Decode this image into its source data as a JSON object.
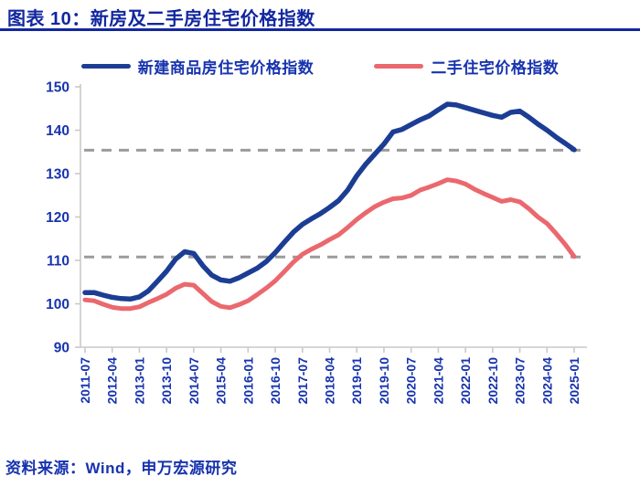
{
  "title": "图表 10：新房及二手房住宅价格指数",
  "legend": {
    "items": [
      {
        "label": "新建商品房住宅价格指数"
      },
      {
        "label": "二手住宅价格指数"
      }
    ]
  },
  "source_note": "资料来源：Wind，申万宏源研究",
  "colors": {
    "title_blue": "#1227a0",
    "text_blue": "#1733ae",
    "new_home_line": "#1c3d94",
    "secondhand_line": "#ea686e",
    "reference_dash": "#9b9b9b",
    "axis_gray": "#c9c9c9"
  },
  "chart_data": {
    "type": "line",
    "title": "新房及二手房住宅价格指数",
    "xlabel": "",
    "ylabel": "",
    "ylim": [
      90,
      150
    ],
    "y_ticks": [
      90,
      100,
      110,
      120,
      130,
      140,
      150
    ],
    "grid": false,
    "legend_position": "top",
    "x_interval_months": 3,
    "x": [
      "2011-07",
      "2011-10",
      "2012-01",
      "2012-04",
      "2012-07",
      "2012-10",
      "2013-01",
      "2013-04",
      "2013-07",
      "2013-10",
      "2014-01",
      "2014-04",
      "2014-07",
      "2014-10",
      "2015-01",
      "2015-04",
      "2015-07",
      "2015-10",
      "2016-01",
      "2016-04",
      "2016-07",
      "2016-10",
      "2017-01",
      "2017-04",
      "2017-07",
      "2017-10",
      "2018-01",
      "2018-04",
      "2018-07",
      "2018-10",
      "2019-01",
      "2019-04",
      "2019-07",
      "2019-10",
      "2020-01",
      "2020-04",
      "2020-07",
      "2020-10",
      "2021-01",
      "2021-04",
      "2021-07",
      "2021-10",
      "2022-01",
      "2022-04",
      "2022-07",
      "2022-10",
      "2023-01",
      "2023-04",
      "2023-07",
      "2023-10",
      "2024-01",
      "2024-04",
      "2024-07",
      "2024-10",
      "2025-01"
    ],
    "x_tick_labels": [
      "2011-07",
      "2012-04",
      "2013-01",
      "2013-10",
      "2014-07",
      "2015-04",
      "2016-01",
      "2016-10",
      "2017-07",
      "2018-04",
      "2019-01",
      "2019-10",
      "2020-07",
      "2021-04",
      "2022-01",
      "2022-10",
      "2023-07",
      "2024-04",
      "2025-01"
    ],
    "series": [
      {
        "name": "新建商品房住宅价格指数",
        "color": "#1c3d94",
        "values": [
          102.6,
          102.6,
          102.0,
          101.5,
          101.2,
          101.1,
          101.6,
          103.0,
          105.2,
          107.5,
          110.3,
          112.0,
          111.6,
          108.8,
          106.6,
          105.5,
          105.2,
          106.0,
          107.1,
          108.2,
          109.7,
          111.8,
          114.2,
          116.5,
          118.3,
          119.6,
          120.8,
          122.2,
          123.8,
          126.2,
          129.5,
          132.2,
          134.5,
          136.8,
          139.6,
          140.2,
          141.3,
          142.4,
          143.3,
          144.7,
          146.0,
          145.8,
          145.2,
          144.6,
          144.0,
          143.4,
          143.0,
          144.1,
          144.4,
          143.0,
          141.4,
          140.0,
          138.4,
          137.0,
          135.5
        ]
      },
      {
        "name": "二手住宅价格指数",
        "color": "#ea686e",
        "values": [
          100.9,
          100.7,
          99.9,
          99.2,
          98.9,
          98.9,
          99.3,
          100.3,
          101.2,
          102.2,
          103.6,
          104.5,
          104.3,
          102.4,
          100.5,
          99.4,
          99.1,
          99.8,
          100.7,
          102.1,
          103.6,
          105.3,
          107.4,
          109.6,
          111.4,
          112.6,
          113.6,
          114.8,
          115.9,
          117.6,
          119.4,
          121.0,
          122.4,
          123.4,
          124.2,
          124.4,
          125.0,
          126.2,
          126.9,
          127.7,
          128.6,
          128.3,
          127.6,
          126.4,
          125.4,
          124.5,
          123.6,
          124.0,
          123.5,
          121.9,
          120.0,
          118.5,
          116.2,
          113.7,
          110.9
        ]
      }
    ],
    "reference_lines": [
      {
        "value": 135.4,
        "style": "dashed",
        "color": "#9b9b9b"
      },
      {
        "value": 110.8,
        "style": "dashed",
        "color": "#9b9b9b"
      }
    ]
  }
}
